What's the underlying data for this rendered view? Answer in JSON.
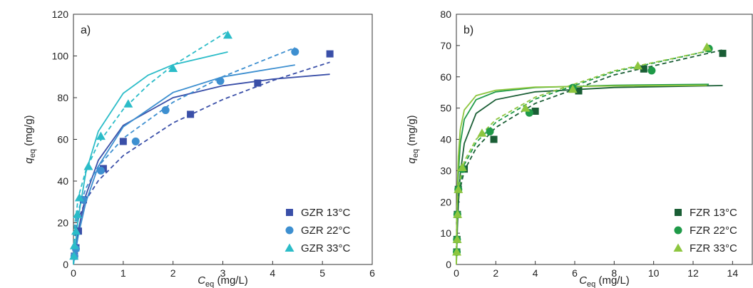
{
  "chart_data": [
    {
      "type": "scatter",
      "panel_label": "a)",
      "x_label": {
        "main": "C",
        "sub": "eq",
        "unit": " (mg/L)"
      },
      "y_label": {
        "main": "q",
        "sub": "eq",
        "unit": " (mg/g)"
      },
      "xlim": [
        0,
        6
      ],
      "xticks": [
        0,
        1,
        2,
        3,
        4,
        5,
        6
      ],
      "ylim": [
        0,
        120
      ],
      "yticks": [
        0,
        20,
        40,
        60,
        80,
        100,
        120
      ],
      "series": [
        {
          "name": "GZR 13°C",
          "color": "#3a4fa8",
          "marker": "square",
          "x": [
            0.02,
            0.05,
            0.1,
            0.2,
            0.6,
            1.0,
            2.35,
            3.7,
            5.15
          ],
          "values": [
            4,
            8,
            16,
            31,
            46,
            59,
            72,
            87,
            101
          ]
        },
        {
          "name": "GZR 22°C",
          "color": "#3d8fd0",
          "marker": "circle",
          "x": [
            0.02,
            0.05,
            0.2,
            0.55,
            1.25,
            1.85,
            2.95,
            4.45
          ],
          "values": [
            4,
            7.5,
            31,
            45,
            59,
            74,
            88,
            102
          ]
        },
        {
          "name": "GZR 33°C",
          "color": "#2bbcc8",
          "marker": "triangle",
          "x": [
            0.01,
            0.02,
            0.05,
            0.08,
            0.12,
            0.3,
            0.55,
            1.1,
            2.0,
            3.1
          ],
          "values": [
            4,
            9,
            16,
            24,
            32,
            47,
            61.5,
            77,
            94,
            110
          ]
        }
      ],
      "curves": [
        {
          "color": "#3a4fa8",
          "dashed": false,
          "x": [
            0,
            0.02,
            0.1,
            0.25,
            0.5,
            1,
            2,
            3,
            4,
            5.15
          ],
          "values": [
            0,
            3.8,
            16.7,
            33.3,
            50,
            66.7,
            80,
            85.7,
            88.9,
            91.2
          ]
        },
        {
          "color": "#3a4fa8",
          "dashed": true,
          "x": [
            0,
            0.02,
            0.1,
            0.25,
            0.5,
            1,
            2,
            3,
            4,
            5.15
          ],
          "values": [
            0,
            11.9,
            21.9,
            30.9,
            40.2,
            52.2,
            67.9,
            79.1,
            88.2,
            97.0
          ]
        },
        {
          "color": "#3d8fd0",
          "dashed": false,
          "x": [
            0,
            0.02,
            0.1,
            0.25,
            0.5,
            1,
            2,
            3,
            4.45
          ],
          "values": [
            0,
            3.2,
            14.3,
            30,
            47.1,
            66,
            82.5,
            90,
            95.7
          ]
        },
        {
          "color": "#3d8fd0",
          "dashed": true,
          "x": [
            0,
            0.02,
            0.1,
            0.25,
            0.5,
            1,
            2,
            3,
            4.45
          ],
          "values": [
            0,
            14.6,
            26.2,
            36.6,
            47.1,
            60.5,
            77.8,
            90.1,
            104.0
          ]
        },
        {
          "color": "#2bbcc8",
          "dashed": false,
          "x": [
            0,
            0.02,
            0.1,
            0.25,
            0.5,
            1,
            1.5,
            2,
            3.1
          ],
          "values": [
            0,
            5.5,
            23,
            44.2,
            63.9,
            82.1,
            90.8,
            95.8,
            101.9
          ]
        },
        {
          "color": "#2bbcc8",
          "dashed": true,
          "x": [
            0,
            0.02,
            0.1,
            0.25,
            0.5,
            1,
            1.5,
            2,
            3.1
          ],
          "values": [
            0,
            18.2,
            32.5,
            45.2,
            58.0,
            74.4,
            86.1,
            95.5,
            111.8
          ]
        }
      ]
    },
    {
      "type": "scatter",
      "panel_label": "b)",
      "x_label": {
        "main": "C",
        "sub": "eq",
        "unit": " (mg/L)"
      },
      "y_label": {
        "main": "q",
        "sub": "eq",
        "unit": " (mg/g)"
      },
      "xlim": [
        0,
        15
      ],
      "xticks": [
        0,
        2,
        4,
        6,
        8,
        10,
        12,
        14
      ],
      "ylim": [
        0,
        80
      ],
      "yticks": [
        0,
        10,
        20,
        30,
        40,
        50,
        60,
        70,
        80
      ],
      "series": [
        {
          "name": "FZR 13°C",
          "color": "#1a5e35",
          "marker": "square",
          "x": [
            0.02,
            0.03,
            0.05,
            0.1,
            0.4,
            1.9,
            4.0,
            6.2,
            9.5,
            13.5
          ],
          "values": [
            4,
            8,
            16,
            24,
            30.5,
            40,
            49,
            55.5,
            62.5,
            67.5
          ]
        },
        {
          "name": "FZR 22°C",
          "color": "#1f9a48",
          "marker": "circle",
          "x": [
            0.02,
            0.03,
            0.05,
            0.1,
            0.3,
            1.7,
            3.7,
            5.9,
            9.9,
            12.8
          ],
          "values": [
            4,
            8,
            16,
            24,
            30.5,
            42.5,
            48.5,
            56.5,
            62,
            69
          ]
        },
        {
          "name": "FZR 33°C",
          "color": "#8dc63f",
          "marker": "triangle",
          "x": [
            0.02,
            0.04,
            0.06,
            0.1,
            0.3,
            1.3,
            3.5,
            5.9,
            9.2,
            12.7
          ],
          "values": [
            4,
            8,
            16,
            24,
            31,
            42,
            50,
            56,
            63.5,
            69.5
          ]
        }
      ],
      "curves": [
        {
          "color": "#1a5e35",
          "dashed": false,
          "x": [
            0,
            0.05,
            0.1,
            0.2,
            0.4,
            1,
            2,
            4,
            8,
            13.5
          ],
          "values": [
            0,
            11.6,
            19.3,
            29,
            38.7,
            48.3,
            52.7,
            55.2,
            56.6,
            57.2
          ]
        },
        {
          "color": "#1a5e35",
          "dashed": true,
          "x": [
            0,
            0.02,
            0.1,
            0.4,
            1,
            2,
            4,
            8,
            13.5
          ],
          "values": [
            0,
            14.8,
            21.7,
            30.0,
            37.2,
            43.8,
            51.5,
            60.6,
            68.6
          ]
        },
        {
          "color": "#1f9a48",
          "dashed": false,
          "x": [
            0,
            0.05,
            0.1,
            0.2,
            0.4,
            1,
            2,
            4,
            8,
            12.8
          ],
          "values": [
            0,
            19.3,
            29,
            38.7,
            46.4,
            52.7,
            55.2,
            56.6,
            57.3,
            57.6
          ]
        },
        {
          "color": "#1f9a48",
          "dashed": true,
          "x": [
            0,
            0.02,
            0.1,
            0.4,
            1,
            2,
            4,
            8,
            12.8
          ],
          "values": [
            0,
            16.5,
            23.5,
            31.9,
            39,
            45.4,
            52.9,
            61.6,
            68.3
          ]
        },
        {
          "color": "#8dc63f",
          "dashed": false,
          "x": [
            0,
            0.05,
            0.1,
            0.2,
            0.4,
            1,
            2,
            4,
            8,
            12.7
          ],
          "values": [
            0,
            24.7,
            34.6,
            43.2,
            49.4,
            54,
            55.7,
            56.7,
            57.1,
            57.3
          ]
        },
        {
          "color": "#8dc63f",
          "dashed": true,
          "x": [
            0,
            0.02,
            0.1,
            0.4,
            1,
            2,
            4,
            8,
            12.7
          ],
          "values": [
            0,
            17.6,
            24.7,
            33,
            40,
            46.3,
            53.5,
            61.9,
            68.2
          ]
        }
      ]
    }
  ]
}
